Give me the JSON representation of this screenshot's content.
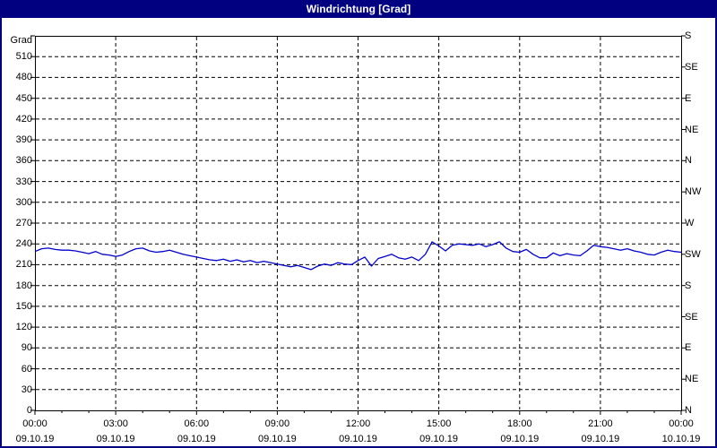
{
  "window": {
    "title": "Windrichtung [Grad]"
  },
  "colors": {
    "title_bar": "#000080",
    "title_text": "#ffffff",
    "frame": "#000080",
    "plot_border": "#000000",
    "grid": "#000000",
    "series_line": "#0000cc",
    "label_text": "#000000",
    "background": "#ffffff"
  },
  "chart_data": {
    "type": "line",
    "title": "Windrichtung [Grad]",
    "grid": {
      "horizontal_step": 30,
      "vertical_step_hours": 3,
      "style": "dashed",
      "visible": true
    },
    "legend": "none",
    "y_axis_left": {
      "label": "Grad",
      "min": 0,
      "max": 540,
      "tick_step": 30,
      "tick_values_top_to_bottom": [
        510,
        480,
        450,
        420,
        390,
        360,
        330,
        300,
        270,
        240,
        210,
        180,
        150,
        120,
        90,
        60,
        30,
        0
      ]
    },
    "y_axis_right": {
      "tick_step": 45,
      "ticks_top_to_bottom": [
        {
          "value": 540,
          "label": "S"
        },
        {
          "value": 495,
          "label": "SE"
        },
        {
          "value": 450,
          "label": "E"
        },
        {
          "value": 405,
          "label": "NE"
        },
        {
          "value": 360,
          "label": "N"
        },
        {
          "value": 315,
          "label": "NW"
        },
        {
          "value": 270,
          "label": "W"
        },
        {
          "value": 225,
          "label": "SW"
        },
        {
          "value": 180,
          "label": "S"
        },
        {
          "value": 135,
          "label": "SE"
        },
        {
          "value": 90,
          "label": "E"
        },
        {
          "value": 45,
          "label": "NE"
        },
        {
          "value": 0,
          "label": "N"
        }
      ]
    },
    "x_axis": {
      "min_hours": 0,
      "max_hours": 24,
      "major_tick_hours": 3,
      "minor_tick_hours": 1,
      "ticks": [
        {
          "hour": 0,
          "time": "00:00",
          "date": "09.10.19"
        },
        {
          "hour": 3,
          "time": "03:00",
          "date": "09.10.19"
        },
        {
          "hour": 6,
          "time": "06:00",
          "date": "09.10.19"
        },
        {
          "hour": 9,
          "time": "09:00",
          "date": "09.10.19"
        },
        {
          "hour": 12,
          "time": "12:00",
          "date": "09.10.19"
        },
        {
          "hour": 15,
          "time": "15:00",
          "date": "09.10.19"
        },
        {
          "hour": 18,
          "time": "18:00",
          "date": "09.10.19"
        },
        {
          "hour": 21,
          "time": "21:00",
          "date": "09.10.19"
        },
        {
          "hour": 24,
          "time": "00:00",
          "date": "10.10.19"
        }
      ]
    },
    "series": [
      {
        "name": "Windrichtung",
        "color": "#0000cc",
        "unit": "Grad",
        "start_hour": 0,
        "step_hours": 0.25,
        "values": [
          229,
          233,
          234,
          232,
          231,
          231,
          230,
          228,
          226,
          229,
          225,
          224,
          222,
          224,
          229,
          233,
          234,
          230,
          228,
          229,
          231,
          228,
          225,
          223,
          221,
          219,
          217,
          216,
          218,
          215,
          217,
          214,
          216,
          213,
          215,
          213,
          211,
          209,
          207,
          209,
          206,
          203,
          208,
          211,
          209,
          213,
          211,
          210,
          216,
          221,
          208,
          219,
          222,
          225,
          220,
          218,
          221,
          216,
          225,
          243,
          237,
          230,
          238,
          240,
          239,
          238,
          240,
          236,
          239,
          243,
          234,
          229,
          228,
          232,
          225,
          220,
          220,
          227,
          223,
          226,
          224,
          223,
          230,
          238,
          236,
          235,
          233,
          231,
          233,
          230,
          228,
          225,
          224,
          228,
          231,
          229,
          228
        ]
      }
    ]
  }
}
